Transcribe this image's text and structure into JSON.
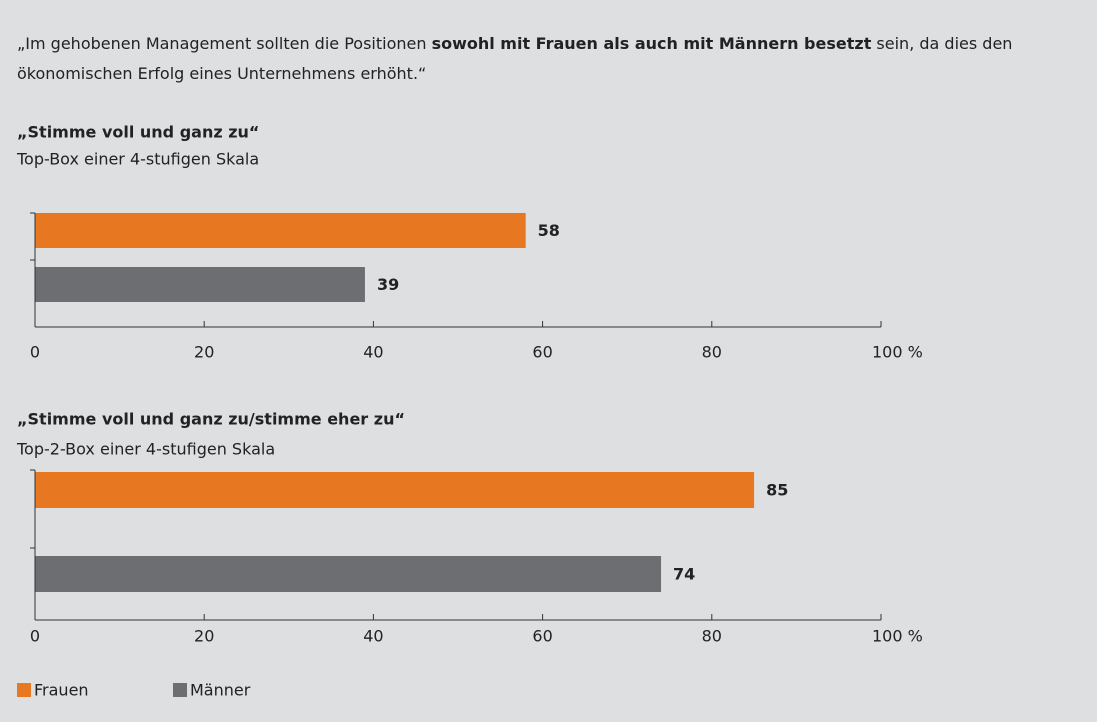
{
  "intro": [
    {
      "text": "„Im gehobenen Management sollten die Positionen "
    },
    {
      "text": "sowohl mit Frauen als auch mit Männern besetzt",
      "bold": true
    },
    {
      "text": " sein, da dies den ökonomischen Erfolg eines Unternehmens erhöht.“"
    }
  ],
  "legend": [
    {
      "name": "Frauen",
      "color": "#e87722"
    },
    {
      "name": "Männer",
      "color": "#6d6e71"
    }
  ],
  "chart_data": [
    {
      "type": "bar",
      "orientation": "horizontal",
      "title": "„Stimme voll und ganz zu“",
      "subtitle": "Top-Box einer 4-stufigen Skala",
      "values": [
        58,
        39
      ],
      "xlim": [
        0,
        100
      ],
      "xticks": [
        0,
        20,
        40,
        60,
        80,
        {
          "value": 100,
          "label": "100 %"
        }
      ]
    },
    {
      "type": "bar",
      "orientation": "horizontal",
      "title": "„Stimme voll und ganz zu/stimme eher zu“",
      "subtitle": "Top-2-Box einer 4-stufigen Skala",
      "values": [
        85,
        74
      ],
      "xlim": [
        0,
        100
      ],
      "xticks": [
        0,
        20,
        40,
        60,
        80,
        {
          "value": 100,
          "label": "100 %"
        }
      ]
    }
  ]
}
